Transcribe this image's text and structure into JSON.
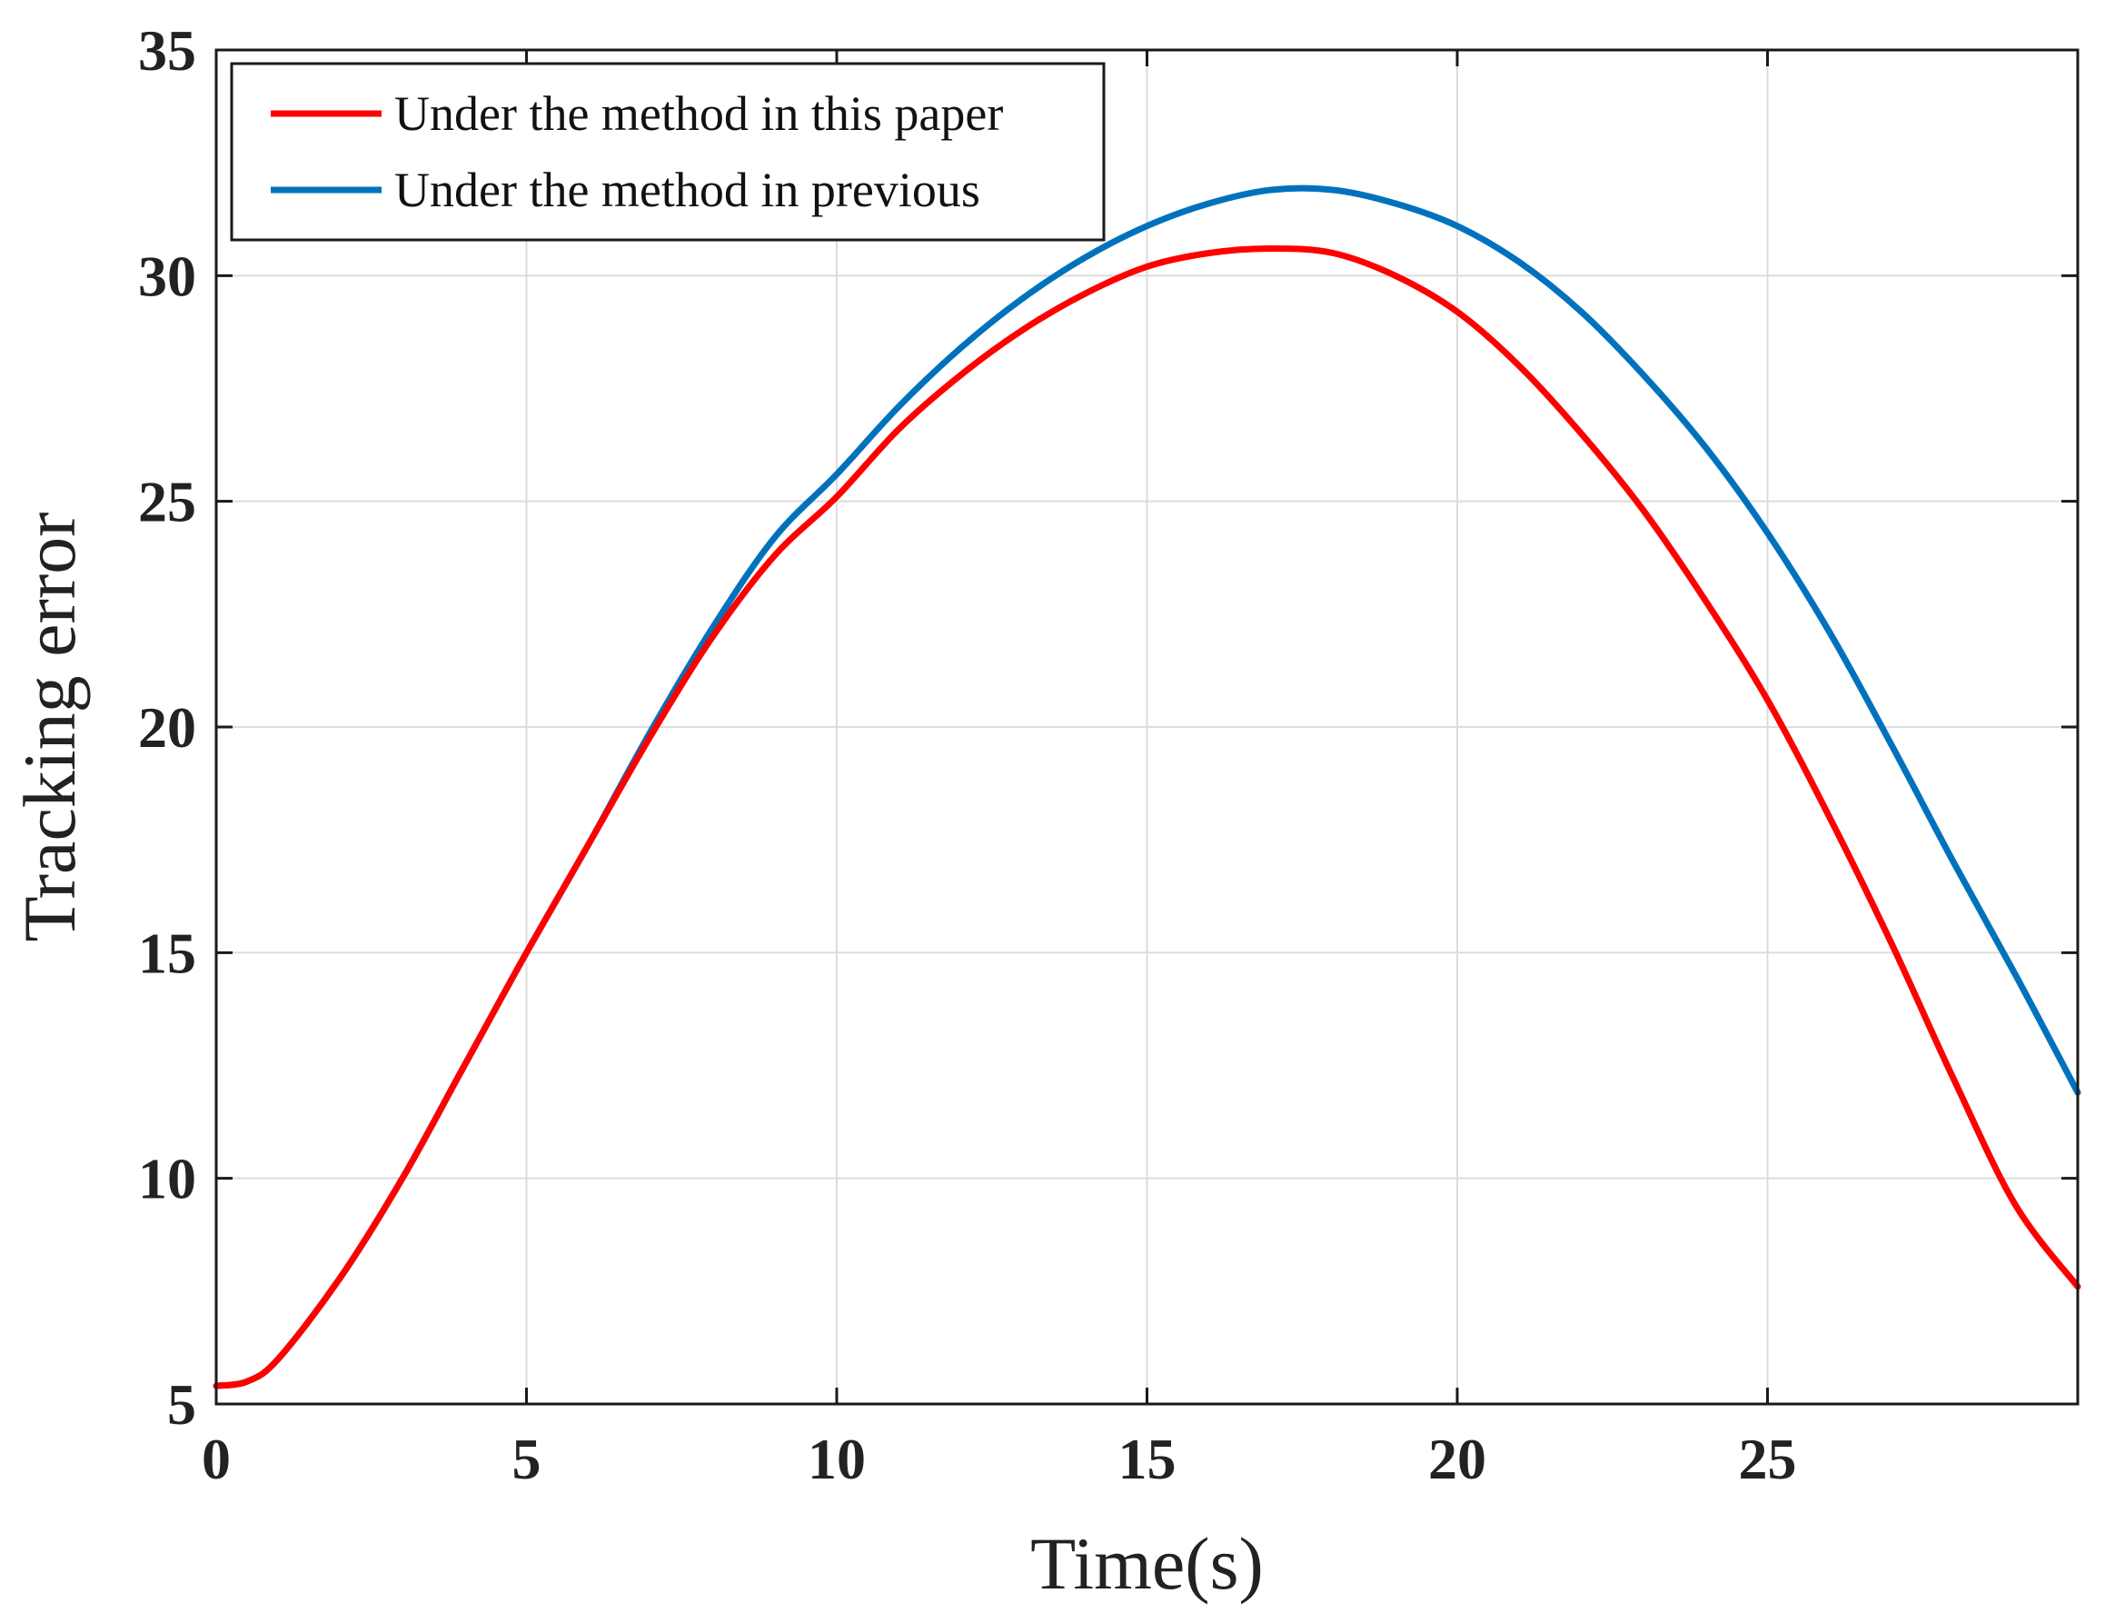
{
  "chart_data": {
    "type": "line",
    "title": "",
    "xlabel": "Time(s)",
    "ylabel": "Tracking error",
    "xlim": [
      0,
      30
    ],
    "ylim": [
      5,
      35
    ],
    "xticks": [
      0,
      5,
      10,
      15,
      20,
      25
    ],
    "yticks": [
      5,
      10,
      15,
      20,
      25,
      30,
      35
    ],
    "grid": true,
    "legend_position": "top-left",
    "series": [
      {
        "name": "Under the method in this paper",
        "color": "#ff0000",
        "x": [
          0,
          0.5,
          1,
          2,
          3,
          4,
          5,
          6,
          7,
          8,
          9,
          10,
          11,
          12,
          13,
          14,
          15,
          16,
          17,
          18,
          19,
          20,
          21,
          22,
          23,
          24,
          25,
          26,
          27,
          28,
          29,
          30
        ],
        "y": [
          5.4,
          5.5,
          6.0,
          7.8,
          10.0,
          12.5,
          15.0,
          17.4,
          19.8,
          22.0,
          23.8,
          25.1,
          26.6,
          27.8,
          28.8,
          29.6,
          30.2,
          30.5,
          30.6,
          30.5,
          30.0,
          29.2,
          28.0,
          26.5,
          24.8,
          22.8,
          20.6,
          18.0,
          15.2,
          12.2,
          9.4,
          7.6
        ]
      },
      {
        "name": "Under the method in previous",
        "color": "#0072bd",
        "x": [
          0,
          0.5,
          1,
          2,
          3,
          4,
          5,
          6,
          7,
          8,
          9,
          10,
          11,
          12,
          13,
          14,
          15,
          16,
          17,
          18,
          19,
          20,
          21,
          22,
          23,
          24,
          25,
          26,
          27,
          28,
          29,
          30
        ],
        "y": [
          5.4,
          5.5,
          6.0,
          7.8,
          10.0,
          12.5,
          15.0,
          17.4,
          19.9,
          22.2,
          24.2,
          25.6,
          27.1,
          28.4,
          29.5,
          30.4,
          31.1,
          31.6,
          31.9,
          31.9,
          31.6,
          31.1,
          30.3,
          29.2,
          27.8,
          26.2,
          24.3,
          22.1,
          19.6,
          17.0,
          14.5,
          11.9
        ]
      }
    ]
  }
}
